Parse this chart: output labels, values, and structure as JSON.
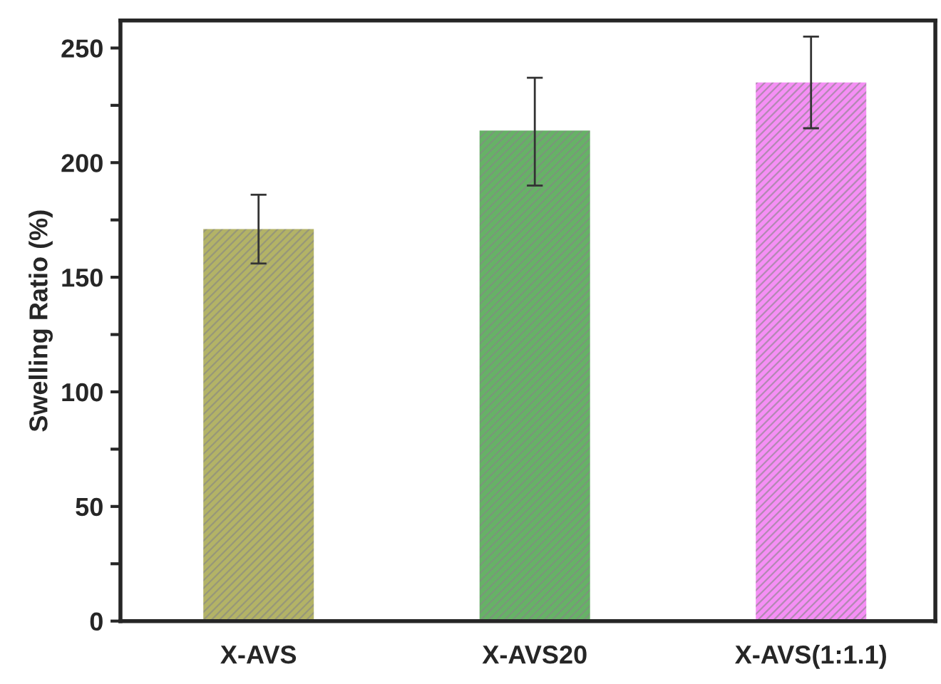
{
  "chart_data": {
    "type": "bar",
    "ylabel": "Swelling Ratio (%)",
    "categories": [
      "X-AVS",
      "X-AVS20",
      "X-AVS(1:1.1)"
    ],
    "values": [
      171,
      214,
      235
    ],
    "errors": [
      [
        156,
        186
      ],
      [
        190,
        237
      ],
      [
        215,
        255
      ]
    ],
    "colors": [
      "#808000",
      "#007f00",
      "#ee44ee"
    ],
    "ylim": [
      0,
      262
    ],
    "yticks": [
      0,
      {
        "value": 25,
        "label": null
      },
      50,
      {
        "value": 75,
        "label": null
      },
      100,
      {
        "value": 125,
        "label": null
      },
      150,
      {
        "value": 175,
        "label": null
      },
      200,
      {
        "value": 225,
        "label": null
      },
      250
    ],
    "grid": false,
    "legend": false
  }
}
